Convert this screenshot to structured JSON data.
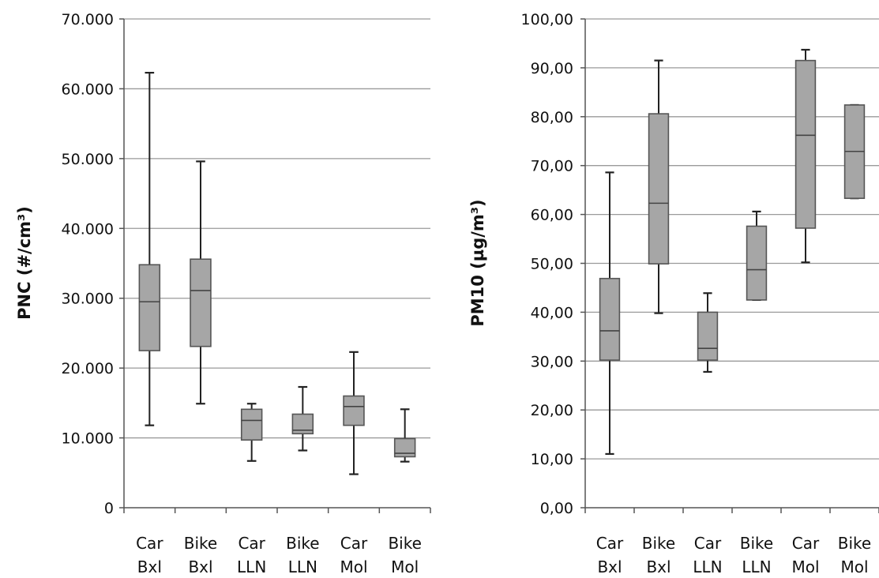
{
  "chart_data": [
    {
      "type": "box",
      "title": "",
      "xlabel": "",
      "ylabel": "PNC  (#/cm³)",
      "ylim": [
        0,
        70000
      ],
      "yticks": [
        0,
        10000,
        20000,
        30000,
        40000,
        50000,
        60000,
        70000
      ],
      "ytick_labels": [
        "0",
        "10.000",
        "20.000",
        "30.000",
        "40.000",
        "50.000",
        "60.000",
        "70.000"
      ],
      "grid": true,
      "box_color": "#a6a6a6",
      "categories": [
        {
          "line1": "Car",
          "line2": "Bxl"
        },
        {
          "line1": "Bike",
          "line2": "Bxl"
        },
        {
          "line1": "Car",
          "line2": "LLN"
        },
        {
          "line1": "Bike",
          "line2": "LLN"
        },
        {
          "line1": "Car",
          "line2": "Mol"
        },
        {
          "line1": "Bike",
          "line2": "Mol"
        }
      ],
      "boxes": [
        {
          "min": 11800,
          "q1": 22500,
          "median": 29500,
          "q3": 34800,
          "max": 62300
        },
        {
          "min": 14900,
          "q1": 23100,
          "median": 31100,
          "q3": 35600,
          "max": 49600
        },
        {
          "min": 6700,
          "q1": 9700,
          "median": 12500,
          "q3": 14100,
          "max": 14900
        },
        {
          "min": 8200,
          "q1": 10600,
          "median": 11100,
          "q3": 13400,
          "max": 17300
        },
        {
          "min": 4800,
          "q1": 11800,
          "median": 14500,
          "q3": 16000,
          "max": 22300
        },
        {
          "min": 6600,
          "q1": 7300,
          "median": 7800,
          "q3": 9900,
          "max": 14100
        }
      ]
    },
    {
      "type": "box",
      "title": "",
      "xlabel": "",
      "ylabel": "PM10 (µg/m³)",
      "ylim": [
        0,
        100
      ],
      "yticks": [
        0,
        10,
        20,
        30,
        40,
        50,
        60,
        70,
        80,
        90,
        100
      ],
      "ytick_labels": [
        "0,00",
        "10,00",
        "20,00",
        "30,00",
        "40,00",
        "50,00",
        "60,00",
        "70,00",
        "80,00",
        "90,00",
        "100,00"
      ],
      "grid": true,
      "box_color": "#a6a6a6",
      "categories": [
        {
          "line1": "Car",
          "line2": "Bxl"
        },
        {
          "line1": "Bike",
          "line2": "Bxl"
        },
        {
          "line1": "Car",
          "line2": "LLN"
        },
        {
          "line1": "Bike",
          "line2": "LLN"
        },
        {
          "line1": "Car",
          "line2": "Mol"
        },
        {
          "line1": "Bike",
          "line2": "Mol"
        }
      ],
      "boxes": [
        {
          "min": 11.0,
          "q1": 30.2,
          "median": 36.2,
          "q3": 46.9,
          "max": 68.6
        },
        {
          "min": 39.8,
          "q1": 49.9,
          "median": 62.3,
          "q3": 80.6,
          "max": 91.5
        },
        {
          "min": 27.8,
          "q1": 30.2,
          "median": 32.6,
          "q3": 40.0,
          "max": 43.9
        },
        {
          "min": 42.5,
          "q1": 42.5,
          "median": 48.7,
          "q3": 57.6,
          "max": 60.6
        },
        {
          "min": 50.2,
          "q1": 57.2,
          "median": 76.2,
          "q3": 91.5,
          "max": 93.7
        },
        {
          "min": 63.3,
          "q1": 63.3,
          "median": 72.9,
          "q3": 82.4,
          "max": 82.4
        }
      ]
    }
  ]
}
